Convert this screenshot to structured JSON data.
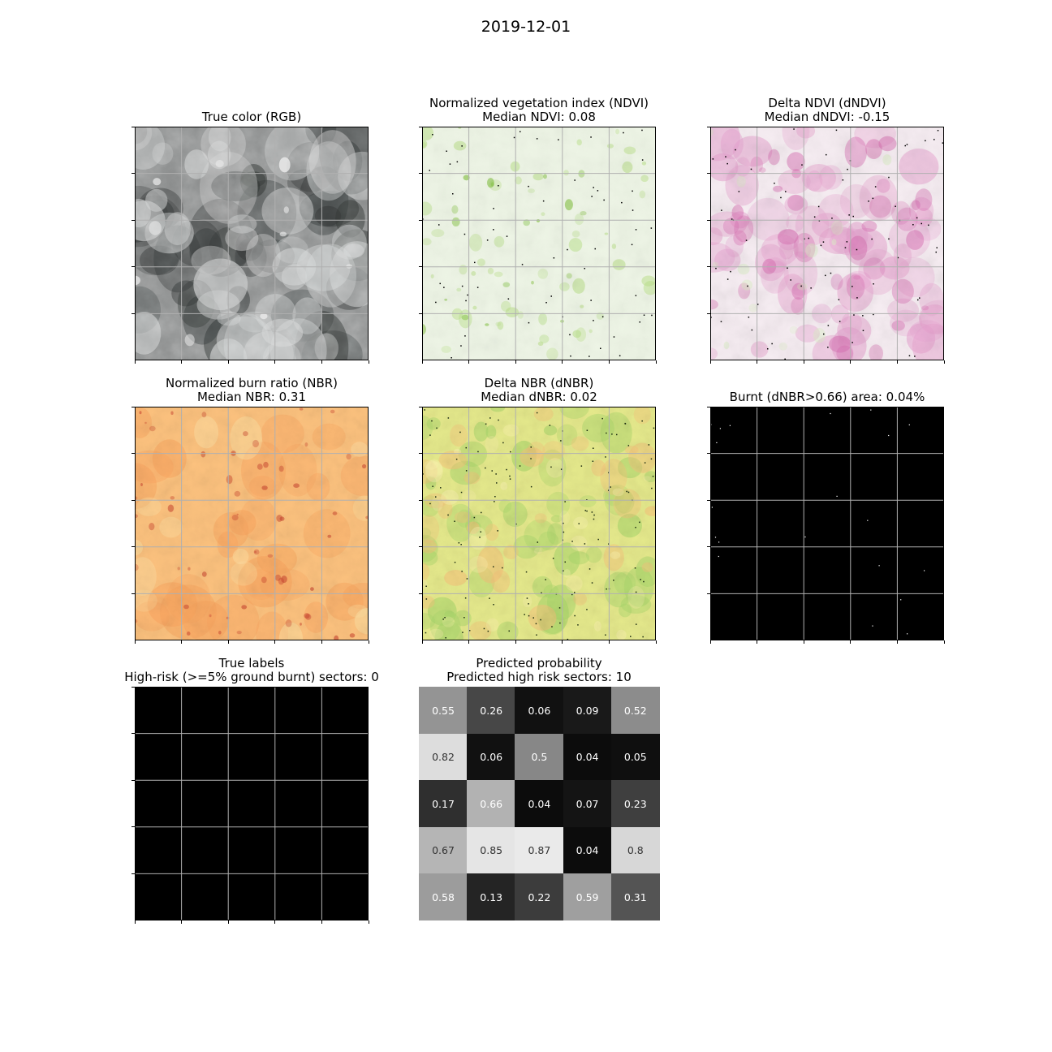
{
  "suptitle": "2019-12-01",
  "panels": {
    "rgb": {
      "title1": "True color (RGB)",
      "title2": ""
    },
    "ndvi": {
      "title1": "Normalized vegetation index (NDVI)",
      "title2": "Median NDVI: 0.08"
    },
    "dndvi": {
      "title1": "Delta NDVI (dNDVI)",
      "title2": "Median dNDVI: -0.15"
    },
    "nbr": {
      "title1": "Normalized burn ratio (NBR)",
      "title2": "Median NBR: 0.31"
    },
    "dnbr": {
      "title1": "Delta NBR (dNBR)",
      "title2": "Median dNBR: 0.02"
    },
    "burnt": {
      "title1": "Burnt (dNBR>0.66) area: 0.04%",
      "title2": ""
    },
    "labels": {
      "title1": "True labels",
      "title2": "High-risk (>=5% ground burnt) sectors: 0"
    },
    "prob": {
      "title1": "Predicted probability",
      "title2": "Predicted high risk sectors: 10"
    }
  },
  "chart_data": {
    "type": "heatmap",
    "title": "Predicted probability",
    "subtitle": "Predicted high risk sectors: 10",
    "rows": 5,
    "cols": 5,
    "values": [
      [
        0.55,
        0.26,
        0.06,
        0.09,
        0.52
      ],
      [
        0.82,
        0.06,
        0.5,
        0.04,
        0.05
      ],
      [
        0.17,
        0.66,
        0.04,
        0.07,
        0.23
      ],
      [
        0.67,
        0.85,
        0.87,
        0.04,
        0.8
      ],
      [
        0.58,
        0.13,
        0.22,
        0.59,
        0.31
      ]
    ],
    "colormap": "grayscale",
    "grid": false
  },
  "colors": {
    "rgb_base": "#8a8c8c",
    "ndvi_base": "#eef5e6",
    "dndvi_base": "#f7eef3",
    "nbr_base": "#fcc27e",
    "dnbr_base": "#e6ea8c",
    "burnt_base": "#000000",
    "labels_base": "#000000",
    "grid": "#b0b0b0"
  }
}
